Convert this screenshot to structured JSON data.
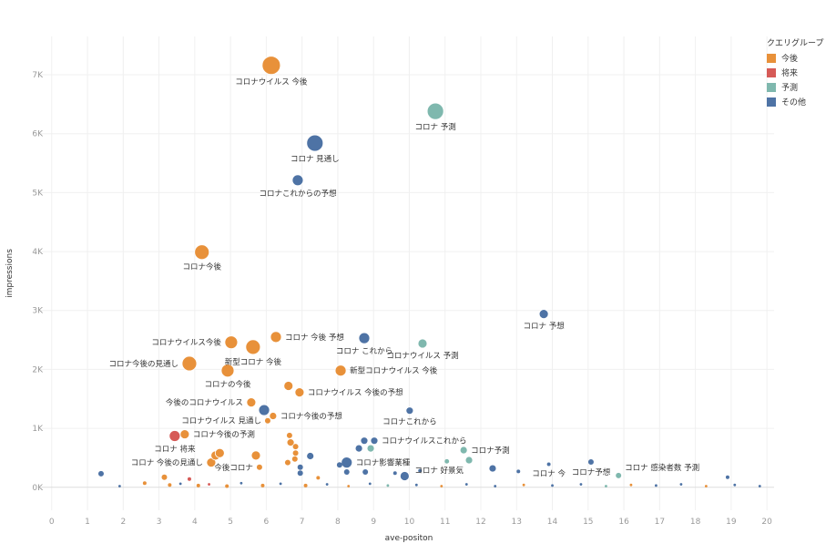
{
  "chart_data": {
    "type": "scatter",
    "xlabel": "ave-positon",
    "ylabel": "impressions",
    "xlim": [
      -0.3,
      20.2
    ],
    "ylim": [
      -390,
      7650
    ],
    "x_ticks": [
      "0",
      "1",
      "2",
      "3",
      "4",
      "5",
      "6",
      "7",
      "8",
      "9",
      "10",
      "11",
      "12",
      "13",
      "14",
      "15",
      "16",
      "17",
      "18",
      "19",
      "20"
    ],
    "y_ticks": [
      {
        "value": 0,
        "label": "0K"
      },
      {
        "value": 1000,
        "label": "1K"
      },
      {
        "value": 2000,
        "label": "2K"
      },
      {
        "value": 3000,
        "label": "3K"
      },
      {
        "value": 4000,
        "label": "4K"
      },
      {
        "value": 5000,
        "label": "5K"
      },
      {
        "value": 6000,
        "label": "6K"
      },
      {
        "value": 7000,
        "label": "7K"
      }
    ],
    "grid": true,
    "legend": {
      "title": "クエリグループ",
      "placement": "top-right",
      "items": [
        {
          "name": "今後",
          "color": "#E8913A"
        },
        {
          "name": "将来",
          "color": "#D65A57"
        },
        {
          "name": "予測",
          "color": "#7FB8AE"
        },
        {
          "name": "その他",
          "color": "#4E73A5"
        }
      ]
    },
    "points": [
      {
        "x": 6.14,
        "y": 7160,
        "group": "今後",
        "size": 100,
        "label": "コロナウイルス 今後",
        "label_pos": "below"
      },
      {
        "x": 10.73,
        "y": 6380,
        "group": "予測",
        "size": 81,
        "label": "コロナ 予測",
        "label_pos": "below"
      },
      {
        "x": 7.36,
        "y": 5840,
        "group": "その他",
        "size": 81,
        "label": "コロナ 見通し",
        "label_pos": "below"
      },
      {
        "x": 6.88,
        "y": 5210,
        "group": "その他",
        "size": 36,
        "label": "コロナこれからの予想",
        "label_pos": "below"
      },
      {
        "x": 4.2,
        "y": 3990,
        "group": "今後",
        "size": 64,
        "label": "コロナ今後",
        "label_pos": "below"
      },
      {
        "x": 13.76,
        "y": 2940,
        "group": "その他",
        "size": 25,
        "label": "コロナ 予想",
        "label_pos": "below"
      },
      {
        "x": 5.02,
        "y": 2460,
        "group": "今後",
        "size": 49,
        "label": "コロナウイルス今後",
        "label_pos": "left"
      },
      {
        "x": 5.63,
        "y": 2380,
        "group": "今後",
        "size": 64,
        "label": "新型コロナ 今後",
        "label_pos": "below"
      },
      {
        "x": 6.27,
        "y": 2550,
        "group": "今後",
        "size": 36,
        "label": "コロナ 今後 予想",
        "label_pos": "right"
      },
      {
        "x": 8.74,
        "y": 2530,
        "group": "その他",
        "size": 36,
        "label": "コロナ これから",
        "label_pos": "below"
      },
      {
        "x": 10.37,
        "y": 2440,
        "group": "予測",
        "size": 25,
        "label": "コロナウイルス 予測",
        "label_pos": "below"
      },
      {
        "x": 3.85,
        "y": 2100,
        "group": "今後",
        "size": 64,
        "label": "コロナ今後の見通し",
        "label_pos": "left"
      },
      {
        "x": 4.92,
        "y": 1980,
        "group": "今後",
        "size": 49,
        "label": "コロナの今後",
        "label_pos": "below"
      },
      {
        "x": 8.08,
        "y": 1980,
        "group": "今後",
        "size": 36,
        "label": "新型コロナウイルス 今後",
        "label_pos": "right"
      },
      {
        "x": 6.62,
        "y": 1720,
        "group": "今後",
        "size": 25,
        "label": "",
        "label_pos": ""
      },
      {
        "x": 6.93,
        "y": 1610,
        "group": "今後",
        "size": 25,
        "label": "コロナウイルス 今後の予想",
        "label_pos": "right"
      },
      {
        "x": 5.58,
        "y": 1440,
        "group": "今後",
        "size": 25,
        "label": "今後のコロナウイルス",
        "label_pos": "left"
      },
      {
        "x": 5.94,
        "y": 1310,
        "group": "その他",
        "size": 36,
        "label": "",
        "label_pos": ""
      },
      {
        "x": 6.19,
        "y": 1210,
        "group": "今後",
        "size": 16,
        "label": "コロナ今後の予想",
        "label_pos": "right"
      },
      {
        "x": 6.04,
        "y": 1130,
        "group": "今後",
        "size": 9,
        "label": "コロナウイルス 見通し",
        "label_pos": "left"
      },
      {
        "x": 10.01,
        "y": 1300,
        "group": "その他",
        "size": 16,
        "label": "コロナこれから",
        "label_pos": "below"
      },
      {
        "x": 3.44,
        "y": 870,
        "group": "将来",
        "size": 36,
        "label": "コロナ 将来",
        "label_pos": "below"
      },
      {
        "x": 3.72,
        "y": 900,
        "group": "今後",
        "size": 25,
        "label": "コロナ今後の予測",
        "label_pos": "right"
      },
      {
        "x": 9.02,
        "y": 790,
        "group": "その他",
        "size": 16,
        "label": "コロナウイルスこれから",
        "label_pos": "right"
      },
      {
        "x": 8.74,
        "y": 790,
        "group": "その他",
        "size": 16,
        "label": "",
        "label_pos": ""
      },
      {
        "x": 8.59,
        "y": 660,
        "group": "その他",
        "size": 16,
        "label": "",
        "label_pos": ""
      },
      {
        "x": 8.92,
        "y": 660,
        "group": "予測",
        "size": 16,
        "label": "",
        "label_pos": ""
      },
      {
        "x": 4.46,
        "y": 420,
        "group": "今後",
        "size": 25,
        "label": "コロナ 今後の見通し",
        "label_pos": "left"
      },
      {
        "x": 4.58,
        "y": 540,
        "group": "今後",
        "size": 25,
        "label": "",
        "label_pos": ""
      },
      {
        "x": 4.7,
        "y": 580,
        "group": "今後",
        "size": 25,
        "label": "",
        "label_pos": ""
      },
      {
        "x": 5.71,
        "y": 540,
        "group": "今後",
        "size": 25,
        "label": "",
        "label_pos": ""
      },
      {
        "x": 5.81,
        "y": 340,
        "group": "今後",
        "size": 9,
        "label": "今後コロナ",
        "label_pos": "left"
      },
      {
        "x": 6.65,
        "y": 880,
        "group": "今後",
        "size": 9,
        "label": "",
        "label_pos": ""
      },
      {
        "x": 6.68,
        "y": 760,
        "group": "今後",
        "size": 16,
        "label": "",
        "label_pos": ""
      },
      {
        "x": 6.82,
        "y": 690,
        "group": "今後",
        "size": 9,
        "label": "",
        "label_pos": ""
      },
      {
        "x": 6.82,
        "y": 580,
        "group": "今後",
        "size": 9,
        "label": "",
        "label_pos": ""
      },
      {
        "x": 6.8,
        "y": 480,
        "group": "今後",
        "size": 9,
        "label": "",
        "label_pos": ""
      },
      {
        "x": 6.6,
        "y": 420,
        "group": "今後",
        "size": 9,
        "label": "",
        "label_pos": ""
      },
      {
        "x": 7.23,
        "y": 530,
        "group": "その他",
        "size": 16,
        "label": "",
        "label_pos": ""
      },
      {
        "x": 6.95,
        "y": 340,
        "group": "その他",
        "size": 9,
        "label": "",
        "label_pos": ""
      },
      {
        "x": 6.95,
        "y": 240,
        "group": "その他",
        "size": 9,
        "label": "",
        "label_pos": ""
      },
      {
        "x": 8.25,
        "y": 420,
        "group": "その他",
        "size": 36,
        "label": "コロナ影響業種",
        "label_pos": "right"
      },
      {
        "x": 8.05,
        "y": 380,
        "group": "その他",
        "size": 9,
        "label": "",
        "label_pos": ""
      },
      {
        "x": 8.25,
        "y": 260,
        "group": "その他",
        "size": 9,
        "label": "",
        "label_pos": ""
      },
      {
        "x": 8.77,
        "y": 260,
        "group": "その他",
        "size": 9,
        "label": "",
        "label_pos": ""
      },
      {
        "x": 9.87,
        "y": 190,
        "group": "その他",
        "size": 25,
        "label": "",
        "label_pos": ""
      },
      {
        "x": 11.52,
        "y": 630,
        "group": "予測",
        "size": 16,
        "label": "コロナ予測",
        "label_pos": "right"
      },
      {
        "x": 11.67,
        "y": 460,
        "group": "予測",
        "size": 16,
        "label": "コロナ 好景気",
        "label_pos": "below-left"
      },
      {
        "x": 11.05,
        "y": 440,
        "group": "予測",
        "size": 6,
        "label": "",
        "label_pos": ""
      },
      {
        "x": 12.33,
        "y": 320,
        "group": "その他",
        "size": 16,
        "label": "",
        "label_pos": ""
      },
      {
        "x": 13.05,
        "y": 270,
        "group": "その他",
        "size": 4,
        "label": "",
        "label_pos": ""
      },
      {
        "x": 13.9,
        "y": 390,
        "group": "その他",
        "size": 4,
        "label": "コロナ 今",
        "label_pos": "below"
      },
      {
        "x": 15.08,
        "y": 430,
        "group": "その他",
        "size": 9,
        "label": "コロナ予想",
        "label_pos": "below"
      },
      {
        "x": 15.85,
        "y": 200,
        "group": "予測",
        "size": 9,
        "label": "コロナ 感染者数 予測",
        "label_pos": "right-up"
      },
      {
        "x": 1.38,
        "y": 230,
        "group": "その他",
        "size": 9,
        "label": "",
        "label_pos": ""
      },
      {
        "x": 3.15,
        "y": 170,
        "group": "今後",
        "size": 9,
        "label": "",
        "label_pos": ""
      },
      {
        "x": 3.85,
        "y": 140,
        "group": "将来",
        "size": 4,
        "label": "",
        "label_pos": ""
      },
      {
        "x": 7.45,
        "y": 160,
        "group": "今後",
        "size": 4,
        "label": "",
        "label_pos": ""
      },
      {
        "x": 9.6,
        "y": 240,
        "group": "その他",
        "size": 4,
        "label": "",
        "label_pos": ""
      },
      {
        "x": 10.3,
        "y": 280,
        "group": "その他",
        "size": 4,
        "label": "",
        "label_pos": ""
      },
      {
        "x": 18.9,
        "y": 170,
        "group": "その他",
        "size": 4,
        "label": "",
        "label_pos": ""
      },
      {
        "x": 1.9,
        "y": 20,
        "group": "その他",
        "size": 2,
        "label": "",
        "label_pos": ""
      },
      {
        "x": 2.6,
        "y": 70,
        "group": "今後",
        "size": 4,
        "label": "",
        "label_pos": ""
      },
      {
        "x": 3.3,
        "y": 40,
        "group": "今後",
        "size": 4,
        "label": "",
        "label_pos": ""
      },
      {
        "x": 3.6,
        "y": 60,
        "group": "その他",
        "size": 2,
        "label": "",
        "label_pos": ""
      },
      {
        "x": 4.1,
        "y": 30,
        "group": "今後",
        "size": 4,
        "label": "",
        "label_pos": ""
      },
      {
        "x": 4.4,
        "y": 50,
        "group": "将来",
        "size": 2,
        "label": "",
        "label_pos": ""
      },
      {
        "x": 4.9,
        "y": 20,
        "group": "今後",
        "size": 4,
        "label": "",
        "label_pos": ""
      },
      {
        "x": 5.3,
        "y": 70,
        "group": "その他",
        "size": 2,
        "label": "",
        "label_pos": ""
      },
      {
        "x": 5.9,
        "y": 30,
        "group": "今後",
        "size": 4,
        "label": "",
        "label_pos": ""
      },
      {
        "x": 6.4,
        "y": 60,
        "group": "その他",
        "size": 2,
        "label": "",
        "label_pos": ""
      },
      {
        "x": 7.1,
        "y": 30,
        "group": "今後",
        "size": 4,
        "label": "",
        "label_pos": ""
      },
      {
        "x": 7.7,
        "y": 50,
        "group": "その他",
        "size": 2,
        "label": "",
        "label_pos": ""
      },
      {
        "x": 8.3,
        "y": 20,
        "group": "今後",
        "size": 2,
        "label": "",
        "label_pos": ""
      },
      {
        "x": 8.9,
        "y": 60,
        "group": "その他",
        "size": 2,
        "label": "",
        "label_pos": ""
      },
      {
        "x": 9.4,
        "y": 30,
        "group": "予測",
        "size": 2,
        "label": "",
        "label_pos": ""
      },
      {
        "x": 10.2,
        "y": 40,
        "group": "その他",
        "size": 2,
        "label": "",
        "label_pos": ""
      },
      {
        "x": 10.9,
        "y": 20,
        "group": "今後",
        "size": 2,
        "label": "",
        "label_pos": ""
      },
      {
        "x": 11.6,
        "y": 50,
        "group": "その他",
        "size": 2,
        "label": "",
        "label_pos": ""
      },
      {
        "x": 12.4,
        "y": 20,
        "group": "その他",
        "size": 2,
        "label": "",
        "label_pos": ""
      },
      {
        "x": 13.2,
        "y": 40,
        "group": "今後",
        "size": 2,
        "label": "",
        "label_pos": ""
      },
      {
        "x": 14.0,
        "y": 30,
        "group": "その他",
        "size": 2,
        "label": "",
        "label_pos": ""
      },
      {
        "x": 14.8,
        "y": 50,
        "group": "その他",
        "size": 2,
        "label": "",
        "label_pos": ""
      },
      {
        "x": 15.5,
        "y": 20,
        "group": "予測",
        "size": 2,
        "label": "",
        "label_pos": ""
      },
      {
        "x": 16.2,
        "y": 40,
        "group": "今後",
        "size": 2,
        "label": "",
        "label_pos": ""
      },
      {
        "x": 16.9,
        "y": 30,
        "group": "その他",
        "size": 2,
        "label": "",
        "label_pos": ""
      },
      {
        "x": 17.6,
        "y": 50,
        "group": "その他",
        "size": 2,
        "label": "",
        "label_pos": ""
      },
      {
        "x": 18.3,
        "y": 20,
        "group": "今後",
        "size": 2,
        "label": "",
        "label_pos": ""
      },
      {
        "x": 19.1,
        "y": 40,
        "group": "その他",
        "size": 2,
        "label": "",
        "label_pos": ""
      },
      {
        "x": 19.8,
        "y": 20,
        "group": "その他",
        "size": 2,
        "label": "",
        "label_pos": ""
      }
    ]
  }
}
